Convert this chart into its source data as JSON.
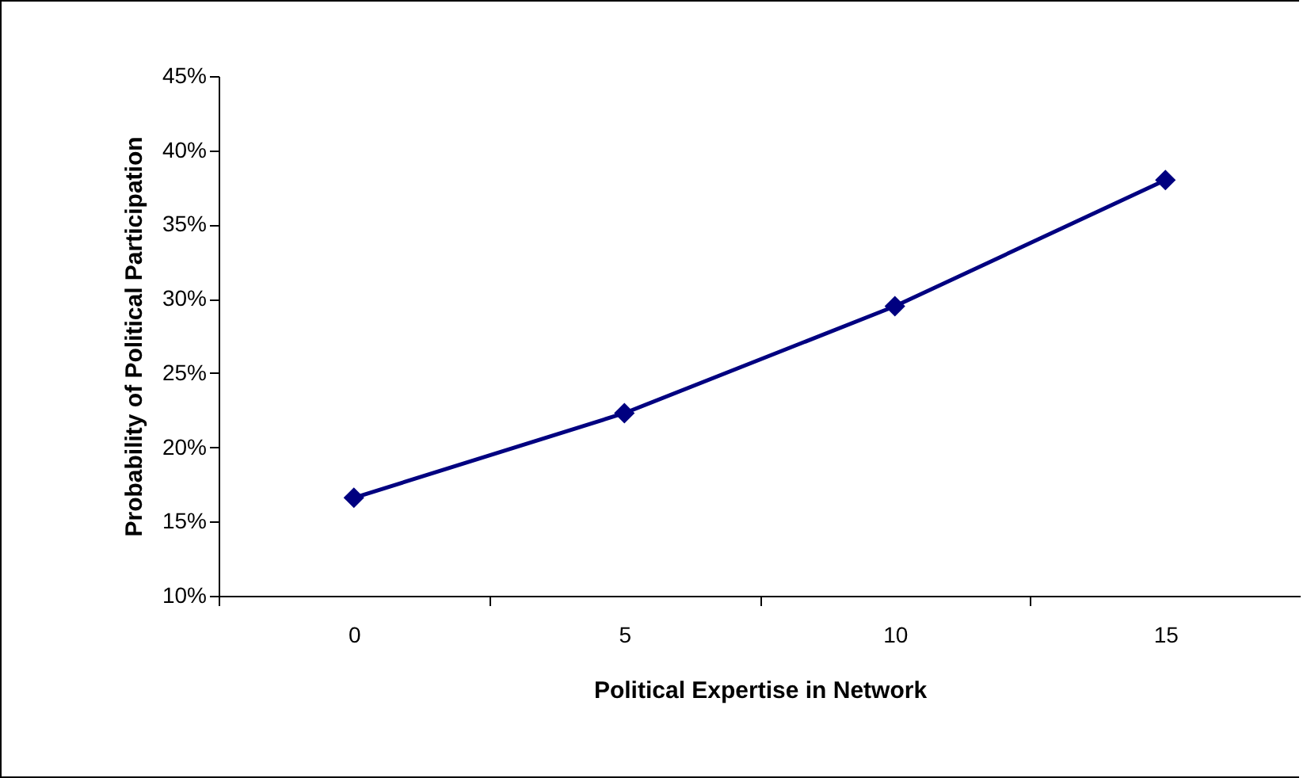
{
  "chart_data": {
    "type": "line",
    "xlabel": "Political Expertise in Network",
    "ylabel": "Probability of Political Participation",
    "categories": [
      "0",
      "5",
      "10",
      "15"
    ],
    "series": [
      {
        "color": "#000080",
        "values": [
          16.6,
          22.3,
          29.5,
          38.0
        ]
      }
    ],
    "ylim": [
      10,
      45
    ],
    "yticks": [
      {
        "value": 10,
        "label": "10%"
      },
      {
        "value": 15,
        "label": "15%"
      },
      {
        "value": 20,
        "label": "20%"
      },
      {
        "value": 25,
        "label": "25%"
      },
      {
        "value": 30,
        "label": "30%"
      },
      {
        "value": 35,
        "label": "35%"
      },
      {
        "value": 40,
        "label": "40%"
      },
      {
        "value": 45,
        "label": "45%"
      }
    ],
    "grid": false,
    "marker": "diamond",
    "line_style": "solid"
  }
}
